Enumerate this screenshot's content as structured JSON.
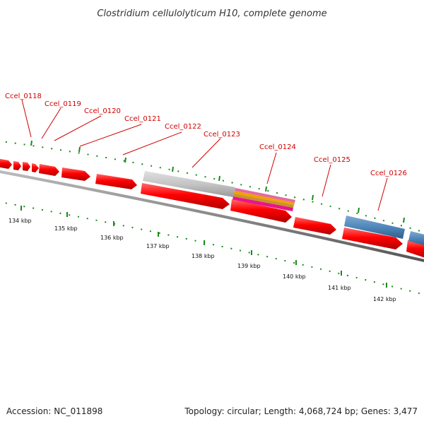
{
  "header": {
    "title": "Clostridium cellulolyticum H10, complete genome"
  },
  "footer": {
    "accession": "Accession: NC_011898",
    "summary": "Topology: circular; Length: 4,068,724 bp; Genes: 3,477"
  },
  "map": {
    "colors": {
      "backbone": "#888888",
      "gene_forward": "#ff0000",
      "feature_grey": "#bfbfbf",
      "feature_blue": "#4f86b9",
      "feature_magenta": "#e8158a",
      "feature_orange": "#f2a100",
      "tick": "#1a8a1a",
      "label": "#d00000"
    },
    "tick_labels": [
      "134 kbp",
      "135 kbp",
      "136 kbp",
      "137 kbp",
      "138 kbp",
      "139 kbp",
      "140 kbp",
      "141 kbp",
      "142 kbp"
    ],
    "gene_labels": [
      "Ccel_0118",
      "Ccel_0119",
      "Ccel_0120",
      "Ccel_0121",
      "Ccel_0122",
      "Ccel_0123",
      "Ccel_0124",
      "Ccel_0125",
      "Ccel_0126"
    ]
  }
}
